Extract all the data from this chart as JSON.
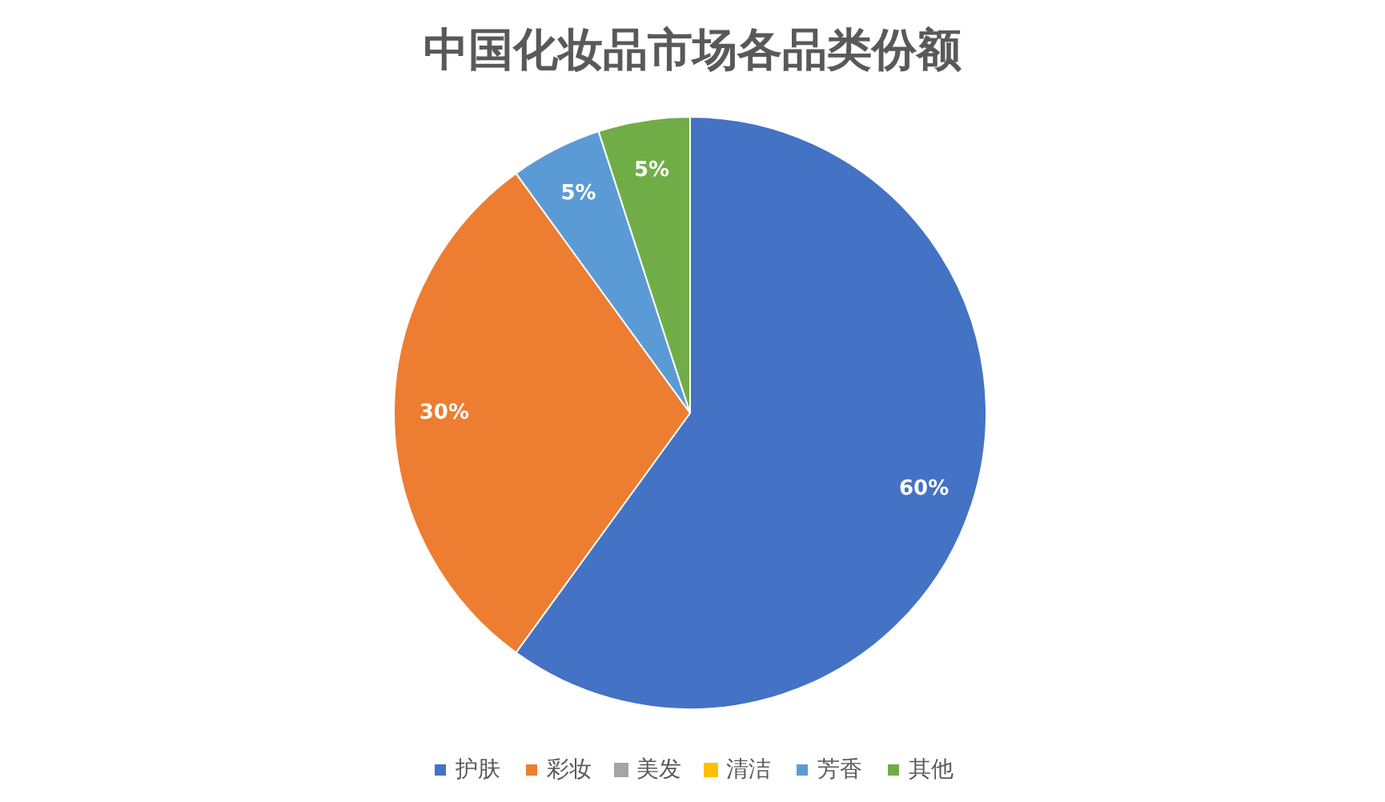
{
  "chart_data": {
    "type": "pie",
    "title": "中国化妆品市场各品类份额",
    "categories": [
      "护肤",
      "彩妆",
      "美发",
      "清洁",
      "芳香",
      "其他"
    ],
    "values": [
      60,
      30,
      0,
      0,
      5,
      5
    ],
    "colors": [
      "#4472c4",
      "#ed7d31",
      "#a5a5a5",
      "#ffc000",
      "#5b9bd5",
      "#70ad47"
    ],
    "value_labels": [
      "60%",
      "30%",
      null,
      null,
      "5%",
      "5%"
    ],
    "legend": "bottom"
  }
}
